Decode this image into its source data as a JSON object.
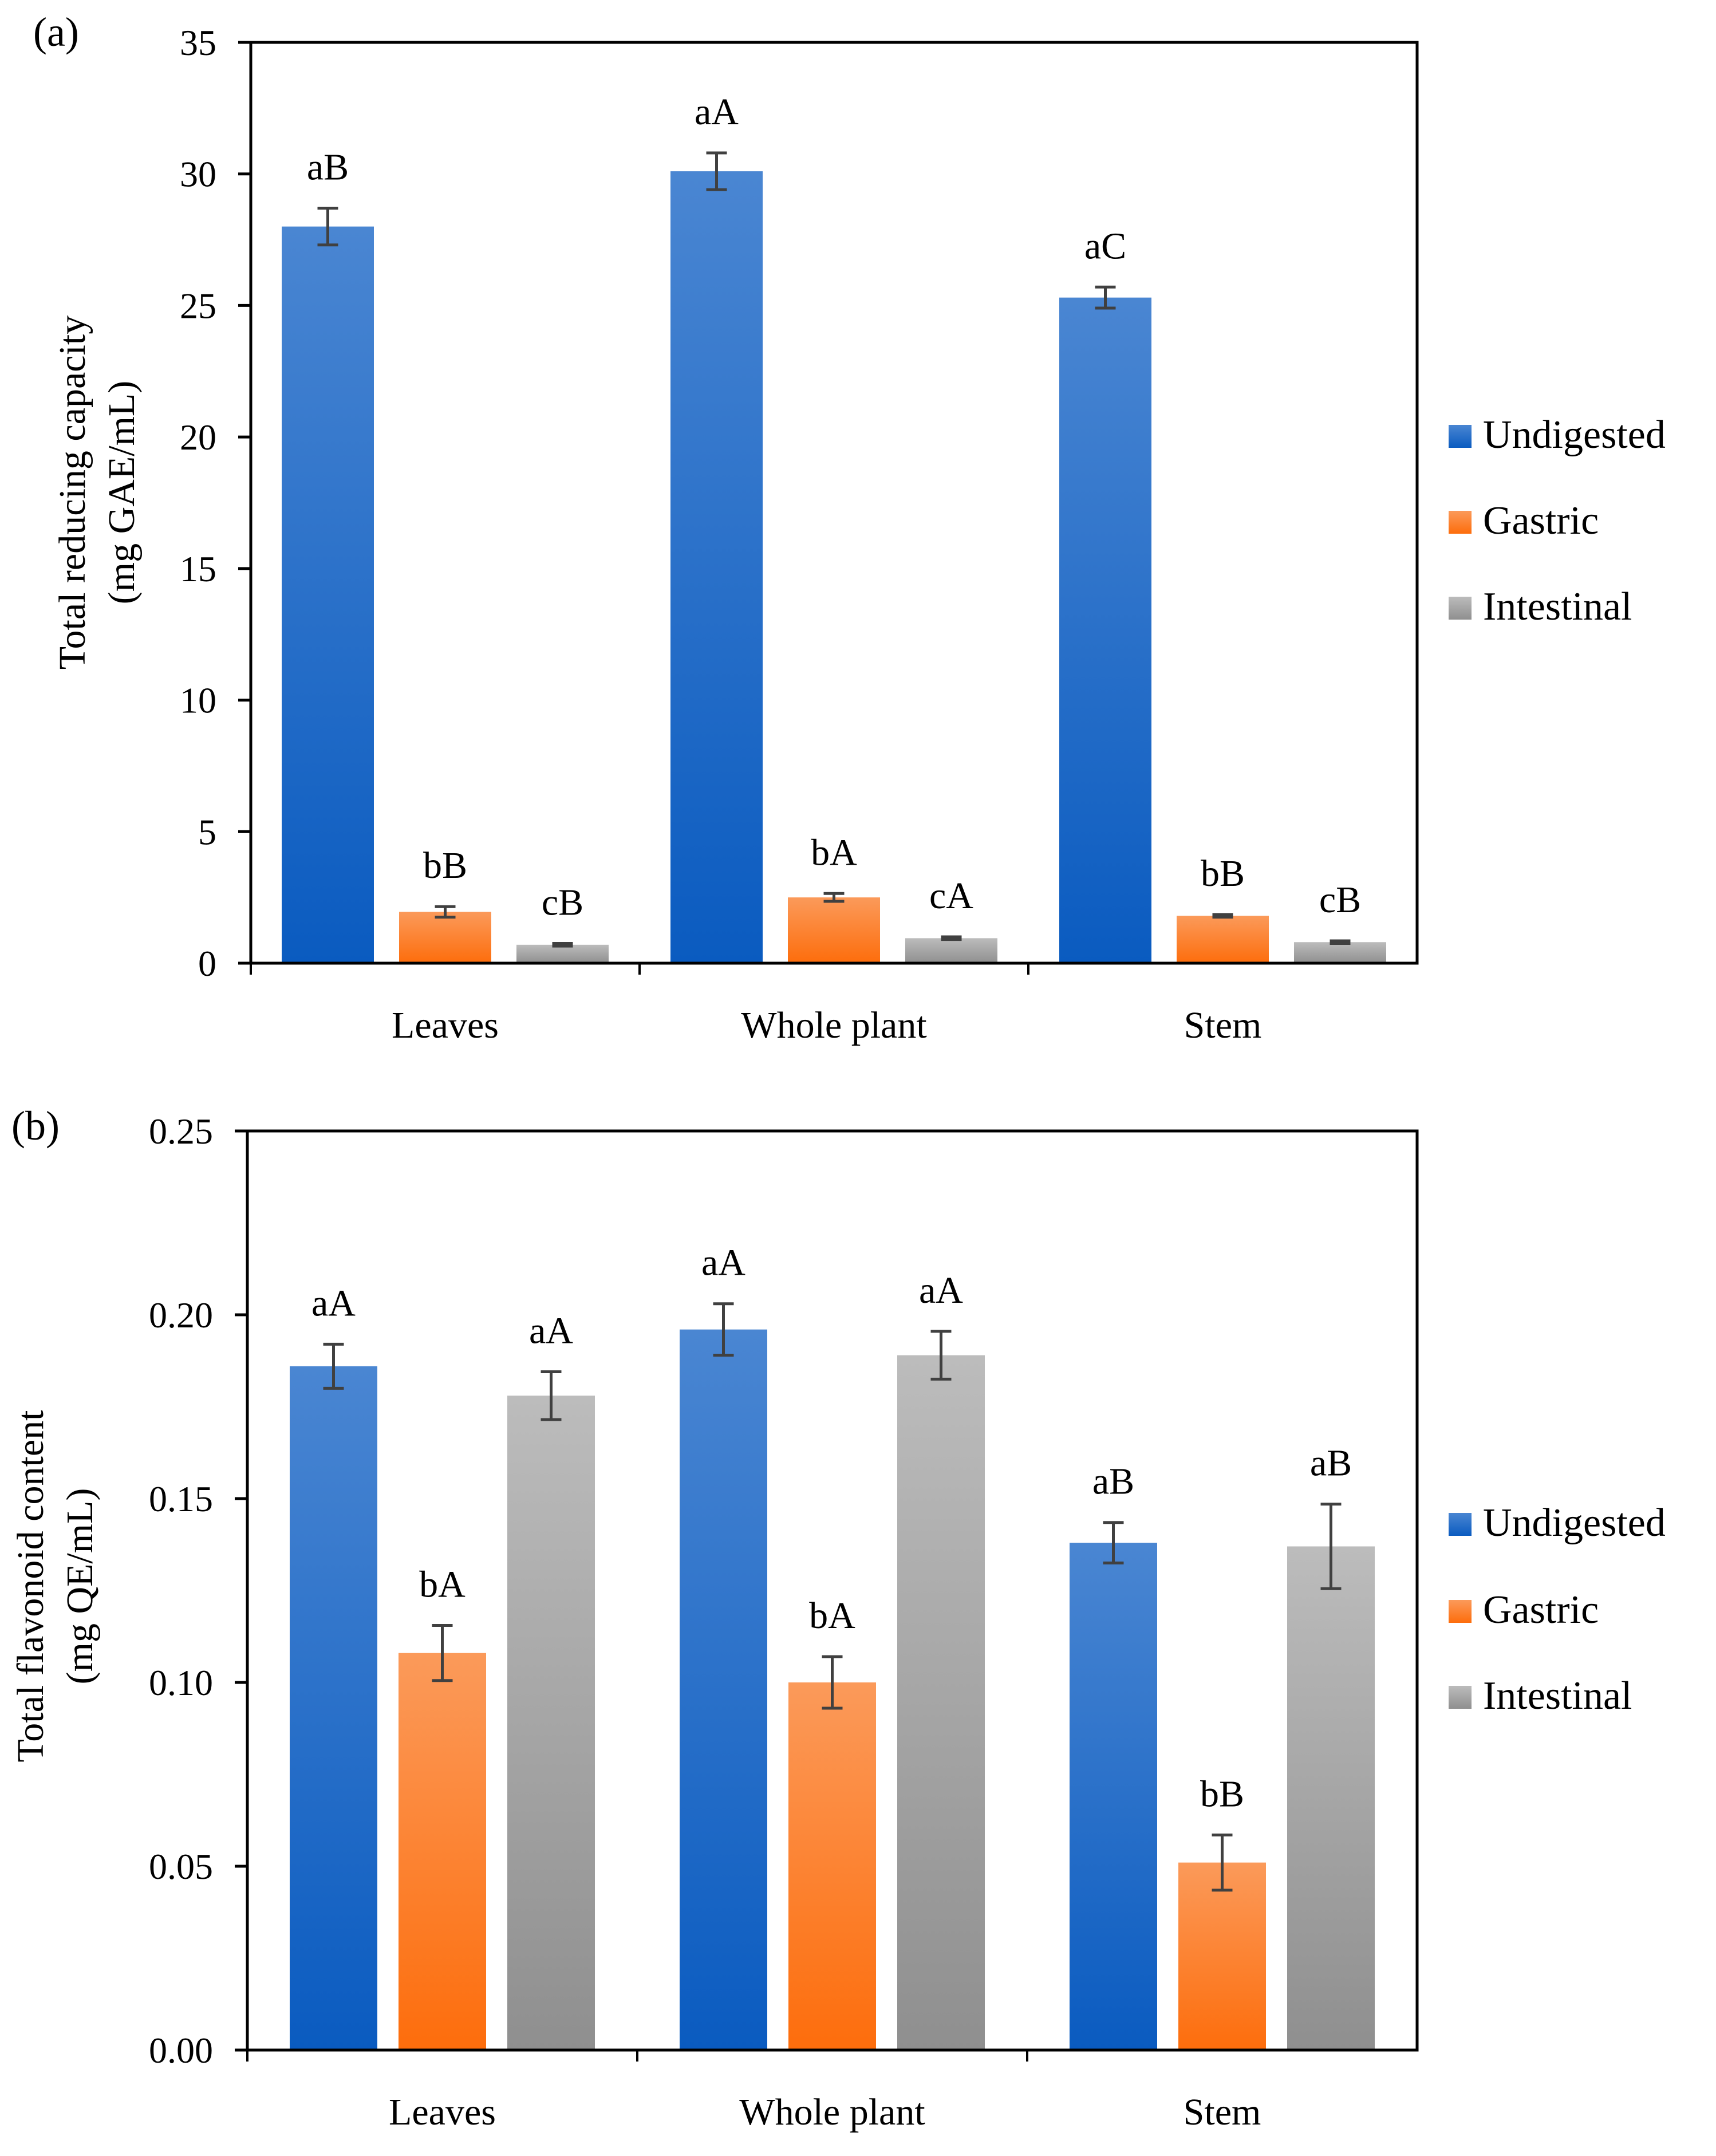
{
  "colors": {
    "undigested_top": "#4a86d2",
    "undigested_bottom": "#0a5bc0",
    "gastric_top": "#fb9a5a",
    "gastric_bottom": "#fd6d0c",
    "intestinal_top": "#bcbcbc",
    "intestinal_bottom": "#8f8f8f",
    "error_bar": "#404040",
    "axis": "#000000"
  },
  "chart_data": [
    {
      "panel_label": "(a)",
      "type": "bar",
      "title": "",
      "xlabel": "",
      "ylabel_line1": "Total reducing capacity",
      "ylabel_line2": "(mg GAE/mL)",
      "ylim": [
        0,
        35
      ],
      "yticks": [
        0,
        5,
        10,
        15,
        20,
        25,
        30,
        35
      ],
      "ytick_labels": [
        "0",
        "5",
        "10",
        "15",
        "20",
        "25",
        "30",
        "35"
      ],
      "categories": [
        "Leaves",
        "Whole plant",
        "Stem"
      ],
      "legend_position": "right",
      "series": [
        {
          "name": "Undigested",
          "values": [
            28.0,
            30.1,
            25.3
          ],
          "errors": [
            0.7,
            0.7,
            0.4
          ],
          "letters": [
            "aB",
            "aA",
            "aC"
          ]
        },
        {
          "name": "Gastric",
          "values": [
            1.95,
            2.5,
            1.8
          ],
          "errors": [
            0.2,
            0.15,
            0.05
          ],
          "letters": [
            "bB",
            "bA",
            "bB"
          ]
        },
        {
          "name": "Intestinal",
          "values": [
            0.7,
            0.95,
            0.8
          ],
          "errors": [
            0.05,
            0.05,
            0.05
          ],
          "letters": [
            "cB",
            "cA",
            "cB"
          ]
        }
      ]
    },
    {
      "panel_label": "(b)",
      "type": "bar",
      "title": "",
      "xlabel": "",
      "ylabel_line1": "Total flavonoid content",
      "ylabel_line2": "(mg QE/mL)",
      "ylim": [
        0,
        0.25
      ],
      "yticks": [
        0,
        0.05,
        0.1,
        0.15,
        0.2,
        0.25
      ],
      "ytick_labels": [
        "0.00",
        "0.05",
        "0.10",
        "0.15",
        "0.20",
        "0.25"
      ],
      "categories": [
        "Leaves",
        "Whole plant",
        "Stem"
      ],
      "legend_position": "right",
      "series": [
        {
          "name": "Undigested",
          "values": [
            0.186,
            0.196,
            0.138
          ],
          "errors": [
            0.006,
            0.007,
            0.0055
          ],
          "letters": [
            "aA",
            "aA",
            "aB"
          ]
        },
        {
          "name": "Gastric",
          "values": [
            0.108,
            0.1,
            0.051
          ],
          "errors": [
            0.0075,
            0.007,
            0.0075
          ],
          "letters": [
            "bA",
            "bA",
            "bB"
          ]
        },
        {
          "name": "Intestinal",
          "values": [
            0.178,
            0.189,
            0.137
          ],
          "errors": [
            0.0065,
            0.0065,
            0.0115
          ],
          "letters": [
            "aA",
            "aA",
            "aB"
          ]
        }
      ]
    }
  ]
}
